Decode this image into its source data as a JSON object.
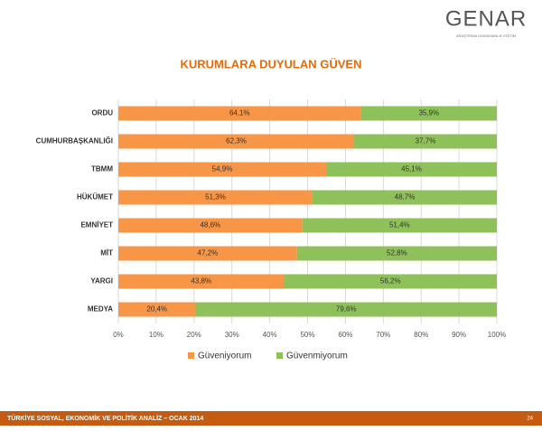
{
  "header": {
    "logo": "GENAR",
    "logo_subtitle": "ARAŞTIRMA DANIŞMANLIK EĞİTİM"
  },
  "chart_data": {
    "type": "stacked-bar-horizontal",
    "title": "KURUMLARA DUYULAN GÜVEN",
    "categories": [
      "ORDU",
      "CUMHURBAŞKANLIĞI",
      "TBMM",
      "HÜKÜMET",
      "EMNİYET",
      "MİT",
      "YARGI",
      "MEDYA"
    ],
    "series": [
      {
        "name": "Güveniyorum",
        "color": "#f79646",
        "values": [
          64.1,
          62.3,
          54.9,
          51.3,
          48.6,
          47.2,
          43.8,
          20.4
        ],
        "value_labels": [
          "64,1%",
          "62,3%",
          "54,9%",
          "51,3%",
          "48,6%",
          "47,2%",
          "43,8%",
          "20,4%"
        ]
      },
      {
        "name": "Güvenmiyorum",
        "color": "#8fc15a",
        "values": [
          35.9,
          37.7,
          45.1,
          48.7,
          51.4,
          52.8,
          56.2,
          79.6
        ],
        "value_labels": [
          "35,9%",
          "37,7%",
          "45,1%",
          "48,7%",
          "51,4%",
          "52,8%",
          "56,2%",
          "79,6%"
        ]
      }
    ],
    "xlim": [
      0,
      100
    ],
    "xticks": [
      {
        "value": 0,
        "label": "0%"
      },
      {
        "value": 10,
        "label": "10%"
      },
      {
        "value": 20,
        "label": "20%"
      },
      {
        "value": 30,
        "label": "30%"
      },
      {
        "value": 40,
        "label": "40%"
      },
      {
        "value": 50,
        "label": "50%"
      },
      {
        "value": 60,
        "label": "60%"
      },
      {
        "value": 70,
        "label": "70%"
      },
      {
        "value": 80,
        "label": "80%"
      },
      {
        "value": 90,
        "label": "90%"
      },
      {
        "value": 100,
        "label": "100%"
      }
    ],
    "grid": true,
    "legend": "bottom"
  },
  "footer": {
    "text": "TÜRKİYE SOSYAL, EKONOMİK VE POLİTİK ANALİZ – OCAK 2014",
    "page": "24"
  }
}
